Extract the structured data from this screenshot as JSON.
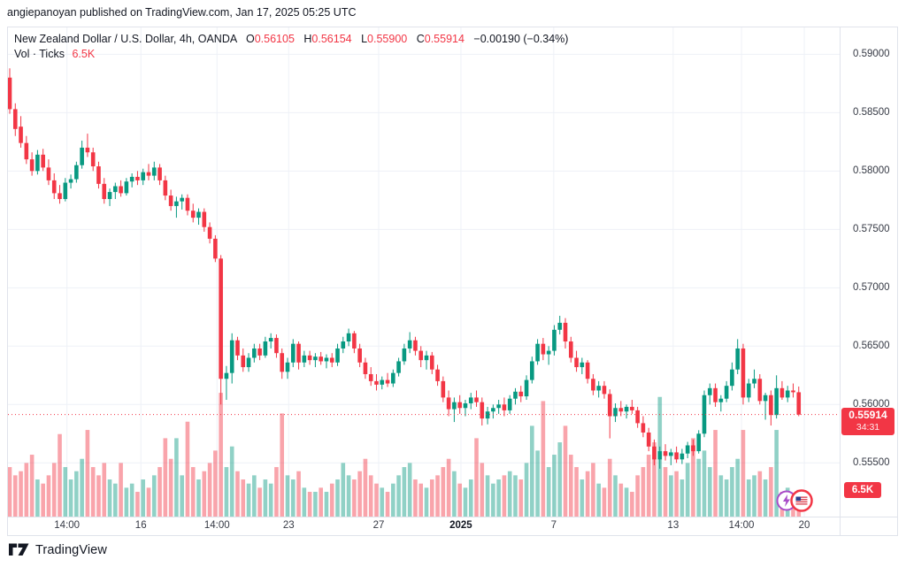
{
  "header": {
    "publish_line": "angiepanoyan published on TradingView.com, Jan 17, 2025 05:25 UTC"
  },
  "legend": {
    "title": "New Zealand Dollar / U.S. Dollar, 4h, OANDA",
    "o_label": "O",
    "o_value": "0.56105",
    "h_label": "H",
    "h_value": "0.56154",
    "l_label": "L",
    "l_value": "0.55900",
    "c_label": "C",
    "c_value": "0.55914",
    "change": "−0.00190 (−0.34%)",
    "vol_label": "Vol · Ticks",
    "vol_value": "6.5K"
  },
  "price_scale": {
    "current_badge": {
      "price": "0.55914",
      "countdown": "34:31"
    },
    "volume_badge": "6.5K"
  },
  "footer": {
    "logo_text": "TradingView"
  },
  "colors": {
    "up": "#089981",
    "down": "#f23645",
    "up_volume": "#089981",
    "down_volume": "#f23645",
    "volume_opacity": 0.45,
    "grid": "#eef1f7",
    "border": "#e0e3eb",
    "axis_text": "#363a45",
    "price_line": "#f23645",
    "badge_bg": "#f23645"
  },
  "chart_data": {
    "type": "candlestick",
    "title": "New Zealand Dollar / U.S. Dollar",
    "timeframe": "4h",
    "exchange": "OANDA",
    "last_bar": {
      "open": 0.56105,
      "high": 0.56154,
      "low": 0.559,
      "close": 0.55914,
      "change": -0.0019,
      "change_pct": -0.34,
      "volume_ticks": "6.5K"
    },
    "price_line_value": 0.55914,
    "y_axis": {
      "max_price": 0.5923,
      "min_price": 0.5504,
      "grid": true
    },
    "price_ticks": [
      {
        "label": "0.59000",
        "price": 0.59
      },
      {
        "label": "0.58500",
        "price": 0.585
      },
      {
        "label": "0.58000",
        "price": 0.58
      },
      {
        "label": "0.57500",
        "price": 0.575
      },
      {
        "label": "0.57000",
        "price": 0.57
      },
      {
        "label": "0.56500",
        "price": 0.565
      },
      {
        "label": "0.56000",
        "price": 0.56
      },
      {
        "label": "0.55500",
        "price": 0.555
      }
    ],
    "time_ticks": [
      {
        "label": "14:00",
        "index": 10.3,
        "bold": false
      },
      {
        "label": "16",
        "index": 23.6,
        "bold": false
      },
      {
        "label": "14:00",
        "index": 37.3,
        "bold": false
      },
      {
        "label": "23",
        "index": 50.2,
        "bold": false
      },
      {
        "label": "27",
        "index": 66.4,
        "bold": false
      },
      {
        "label": "2025",
        "index": 81.2,
        "bold": true
      },
      {
        "label": "7",
        "index": 97.9,
        "bold": false
      },
      {
        "label": "13",
        "index": 119.4,
        "bold": false
      },
      {
        "label": "14:00",
        "index": 131.7,
        "bold": false
      },
      {
        "label": "20",
        "index": 143.0,
        "bold": false
      }
    ],
    "volume_axis_max_k": 30,
    "candles_format": [
      "open",
      "high",
      "low",
      "close",
      "volume_k"
    ],
    "candles": [
      [
        0.588,
        0.5888,
        0.5849,
        0.5853,
        12
      ],
      [
        0.5853,
        0.5858,
        0.583,
        0.5836,
        10
      ],
      [
        0.5838,
        0.5847,
        0.582,
        0.5824,
        11
      ],
      [
        0.5824,
        0.583,
        0.5806,
        0.581,
        13
      ],
      [
        0.581,
        0.5816,
        0.5796,
        0.58,
        15
      ],
      [
        0.58,
        0.5818,
        0.5797,
        0.5814,
        9
      ],
      [
        0.5814,
        0.5819,
        0.58,
        0.5803,
        8
      ],
      [
        0.5803,
        0.581,
        0.5788,
        0.5792,
        10
      ],
      [
        0.5792,
        0.5798,
        0.5776,
        0.5781,
        13
      ],
      [
        0.5781,
        0.5788,
        0.5772,
        0.5776,
        20
      ],
      [
        0.5776,
        0.5794,
        0.5774,
        0.579,
        12
      ],
      [
        0.579,
        0.5797,
        0.5785,
        0.5793,
        9
      ],
      [
        0.5793,
        0.5808,
        0.579,
        0.5805,
        11
      ],
      [
        0.5805,
        0.5826,
        0.5802,
        0.582,
        14
      ],
      [
        0.582,
        0.5832,
        0.5812,
        0.5816,
        21
      ],
      [
        0.5816,
        0.582,
        0.58,
        0.5804,
        12
      ],
      [
        0.5804,
        0.5808,
        0.5785,
        0.5789,
        10
      ],
      [
        0.5789,
        0.5794,
        0.5772,
        0.5776,
        13
      ],
      [
        0.5776,
        0.5785,
        0.577,
        0.5782,
        9
      ],
      [
        0.5782,
        0.579,
        0.5776,
        0.5787,
        8
      ],
      [
        0.5787,
        0.5792,
        0.5778,
        0.5781,
        13
      ],
      [
        0.5781,
        0.5794,
        0.5779,
        0.5791,
        7
      ],
      [
        0.5791,
        0.5798,
        0.5786,
        0.5795,
        8
      ],
      [
        0.5795,
        0.58,
        0.5788,
        0.5792,
        6
      ],
      [
        0.5792,
        0.5802,
        0.5788,
        0.5799,
        9
      ],
      [
        0.5799,
        0.5806,
        0.5792,
        0.5796,
        7
      ],
      [
        0.5796,
        0.5808,
        0.5792,
        0.5803,
        10
      ],
      [
        0.5803,
        0.5806,
        0.5788,
        0.5792,
        12
      ],
      [
        0.5792,
        0.5796,
        0.5775,
        0.5779,
        19
      ],
      [
        0.5779,
        0.5784,
        0.5766,
        0.577,
        14
      ],
      [
        0.577,
        0.5778,
        0.576,
        0.5774,
        19
      ],
      [
        0.5774,
        0.578,
        0.5767,
        0.5777,
        10
      ],
      [
        0.5777,
        0.578,
        0.5762,
        0.5766,
        23
      ],
      [
        0.5766,
        0.5772,
        0.5756,
        0.576,
        12
      ],
      [
        0.576,
        0.5768,
        0.5754,
        0.5765,
        9
      ],
      [
        0.5765,
        0.5768,
        0.5748,
        0.5752,
        11
      ],
      [
        0.5752,
        0.5756,
        0.5738,
        0.5742,
        13
      ],
      [
        0.5742,
        0.5745,
        0.5722,
        0.5725,
        16
      ],
      [
        0.5725,
        0.5728,
        0.56,
        0.5622,
        30
      ],
      [
        0.5622,
        0.5633,
        0.5604,
        0.5627,
        12
      ],
      [
        0.5627,
        0.5661,
        0.5618,
        0.5655,
        17
      ],
      [
        0.5655,
        0.5658,
        0.5638,
        0.5642,
        11
      ],
      [
        0.5642,
        0.5648,
        0.5628,
        0.5632,
        9
      ],
      [
        0.5632,
        0.5644,
        0.5628,
        0.564,
        8
      ],
      [
        0.564,
        0.5652,
        0.5636,
        0.5648,
        10
      ],
      [
        0.5648,
        0.5652,
        0.5638,
        0.5642,
        7
      ],
      [
        0.5642,
        0.5658,
        0.564,
        0.5654,
        9
      ],
      [
        0.5654,
        0.5661,
        0.5648,
        0.5657,
        8
      ],
      [
        0.5657,
        0.566,
        0.564,
        0.5644,
        12
      ],
      [
        0.5644,
        0.5648,
        0.5622,
        0.5628,
        25
      ],
      [
        0.5628,
        0.564,
        0.5622,
        0.5636,
        10
      ],
      [
        0.5636,
        0.5656,
        0.5632,
        0.5652,
        9
      ],
      [
        0.5652,
        0.5654,
        0.563,
        0.5636,
        11
      ],
      [
        0.5636,
        0.5646,
        0.5632,
        0.5642,
        7
      ],
      [
        0.5642,
        0.5646,
        0.5634,
        0.5638,
        6
      ],
      [
        0.5638,
        0.5644,
        0.5632,
        0.5641,
        6
      ],
      [
        0.5641,
        0.5645,
        0.5634,
        0.5637,
        7
      ],
      [
        0.5637,
        0.5643,
        0.5631,
        0.564,
        6
      ],
      [
        0.564,
        0.5644,
        0.5632,
        0.5636,
        8
      ],
      [
        0.5636,
        0.5652,
        0.5633,
        0.5648,
        9
      ],
      [
        0.5648,
        0.5658,
        0.5644,
        0.5654,
        13
      ],
      [
        0.5654,
        0.5665,
        0.565,
        0.5661,
        10
      ],
      [
        0.5661,
        0.5663,
        0.5644,
        0.5648,
        9
      ],
      [
        0.5648,
        0.5652,
        0.5632,
        0.5636,
        11
      ],
      [
        0.5636,
        0.564,
        0.5622,
        0.5626,
        14
      ],
      [
        0.5626,
        0.5632,
        0.5616,
        0.562,
        10
      ],
      [
        0.562,
        0.5626,
        0.5612,
        0.5617,
        8
      ],
      [
        0.5617,
        0.5624,
        0.5613,
        0.5621,
        7
      ],
      [
        0.5621,
        0.5627,
        0.5615,
        0.5618,
        6
      ],
      [
        0.5618,
        0.563,
        0.5615,
        0.5627,
        8
      ],
      [
        0.5627,
        0.564,
        0.5624,
        0.5637,
        10
      ],
      [
        0.5637,
        0.5652,
        0.5634,
        0.5648,
        12
      ],
      [
        0.5648,
        0.5662,
        0.5644,
        0.5655,
        13
      ],
      [
        0.5655,
        0.5658,
        0.5642,
        0.5646,
        9
      ],
      [
        0.5646,
        0.565,
        0.5632,
        0.5638,
        8
      ],
      [
        0.5638,
        0.5646,
        0.563,
        0.5642,
        7
      ],
      [
        0.5642,
        0.5645,
        0.5626,
        0.563,
        9
      ],
      [
        0.563,
        0.5634,
        0.5616,
        0.562,
        10
      ],
      [
        0.562,
        0.5624,
        0.5602,
        0.5606,
        12
      ],
      [
        0.5606,
        0.5612,
        0.559,
        0.5596,
        14
      ],
      [
        0.5596,
        0.5606,
        0.5585,
        0.5602,
        11
      ],
      [
        0.5602,
        0.5608,
        0.5592,
        0.5597,
        8
      ],
      [
        0.5597,
        0.5604,
        0.559,
        0.5601,
        7
      ],
      [
        0.5601,
        0.561,
        0.5596,
        0.5606,
        9
      ],
      [
        0.5606,
        0.5612,
        0.5598,
        0.5602,
        19
      ],
      [
        0.5602,
        0.5606,
        0.5582,
        0.5588,
        13
      ],
      [
        0.5588,
        0.5598,
        0.5583,
        0.5594,
        10
      ],
      [
        0.5594,
        0.56,
        0.5588,
        0.5597,
        8
      ],
      [
        0.5597,
        0.5604,
        0.5592,
        0.56,
        9
      ],
      [
        0.56,
        0.5606,
        0.559,
        0.5595,
        10
      ],
      [
        0.5595,
        0.5608,
        0.5592,
        0.5605,
        11
      ],
      [
        0.5605,
        0.5614,
        0.56,
        0.5611,
        10
      ],
      [
        0.5611,
        0.5616,
        0.5602,
        0.5607,
        9
      ],
      [
        0.5607,
        0.5625,
        0.5604,
        0.5621,
        13
      ],
      [
        0.5621,
        0.5641,
        0.5618,
        0.5637,
        22
      ],
      [
        0.5637,
        0.5656,
        0.5634,
        0.5652,
        16
      ],
      [
        0.5652,
        0.5657,
        0.5638,
        0.5643,
        28
      ],
      [
        0.5643,
        0.565,
        0.5634,
        0.5646,
        12
      ],
      [
        0.5646,
        0.5668,
        0.5642,
        0.5664,
        15
      ],
      [
        0.5664,
        0.5676,
        0.566,
        0.567,
        18
      ],
      [
        0.567,
        0.5674,
        0.5648,
        0.5654,
        22
      ],
      [
        0.5654,
        0.5658,
        0.5636,
        0.564,
        15
      ],
      [
        0.564,
        0.5646,
        0.5628,
        0.5632,
        12
      ],
      [
        0.5632,
        0.564,
        0.5626,
        0.5636,
        9
      ],
      [
        0.5636,
        0.5638,
        0.5618,
        0.5622,
        11
      ],
      [
        0.5622,
        0.5626,
        0.5608,
        0.5612,
        13
      ],
      [
        0.5612,
        0.562,
        0.5606,
        0.5616,
        8
      ],
      [
        0.5616,
        0.562,
        0.5605,
        0.5609,
        7
      ],
      [
        0.5609,
        0.5613,
        0.5571,
        0.559,
        14
      ],
      [
        0.559,
        0.5601,
        0.5585,
        0.5597,
        10
      ],
      [
        0.5597,
        0.5603,
        0.559,
        0.5594,
        8
      ],
      [
        0.5594,
        0.56,
        0.5588,
        0.5598,
        7
      ],
      [
        0.5598,
        0.5604,
        0.5592,
        0.5595,
        6
      ],
      [
        0.5595,
        0.5598,
        0.558,
        0.5584,
        10
      ],
      [
        0.5584,
        0.559,
        0.5572,
        0.5576,
        12
      ],
      [
        0.5576,
        0.558,
        0.556,
        0.5564,
        15
      ],
      [
        0.5564,
        0.557,
        0.5548,
        0.5553,
        18
      ],
      [
        0.5553,
        0.5564,
        0.5545,
        0.556,
        29
      ],
      [
        0.556,
        0.5566,
        0.5552,
        0.5556,
        12
      ],
      [
        0.5556,
        0.5562,
        0.5548,
        0.5559,
        10
      ],
      [
        0.5559,
        0.5564,
        0.555,
        0.5553,
        11
      ],
      [
        0.5553,
        0.5562,
        0.5549,
        0.5558,
        9
      ],
      [
        0.5558,
        0.5568,
        0.5554,
        0.5565,
        13
      ],
      [
        0.5565,
        0.557,
        0.5556,
        0.556,
        19
      ],
      [
        0.556,
        0.5578,
        0.5558,
        0.5575,
        14
      ],
      [
        0.5575,
        0.5612,
        0.5572,
        0.5608,
        16
      ],
      [
        0.5608,
        0.5618,
        0.56,
        0.5614,
        12
      ],
      [
        0.5614,
        0.5618,
        0.5598,
        0.5602,
        21
      ],
      [
        0.5602,
        0.5608,
        0.5594,
        0.5605,
        10
      ],
      [
        0.5605,
        0.562,
        0.5602,
        0.5616,
        9
      ],
      [
        0.5616,
        0.5636,
        0.5612,
        0.563,
        12
      ],
      [
        0.563,
        0.5656,
        0.5626,
        0.5648,
        14
      ],
      [
        0.5648,
        0.5652,
        0.56,
        0.5606,
        21
      ],
      [
        0.5606,
        0.5622,
        0.5602,
        0.5618,
        9
      ],
      [
        0.5618,
        0.563,
        0.5614,
        0.5622,
        10
      ],
      [
        0.5622,
        0.5626,
        0.56,
        0.5603,
        11
      ],
      [
        0.5603,
        0.561,
        0.5587,
        0.5608,
        9
      ],
      [
        0.5608,
        0.5612,
        0.5582,
        0.5591,
        12
      ],
      [
        0.5591,
        0.5625,
        0.5588,
        0.5614,
        21
      ],
      [
        0.5614,
        0.562,
        0.5604,
        0.5606,
        6
      ],
      [
        0.5606,
        0.5616,
        0.5602,
        0.5612,
        7
      ],
      [
        0.5612,
        0.5618,
        0.5606,
        0.56105,
        5
      ],
      [
        0.56105,
        0.56154,
        0.559,
        0.55914,
        6.5
      ]
    ],
    "event_markers": [
      {
        "name": "economic-event",
        "icon": "purple-event"
      },
      {
        "name": "economic-event-us",
        "icon": "us-flag"
      }
    ]
  }
}
